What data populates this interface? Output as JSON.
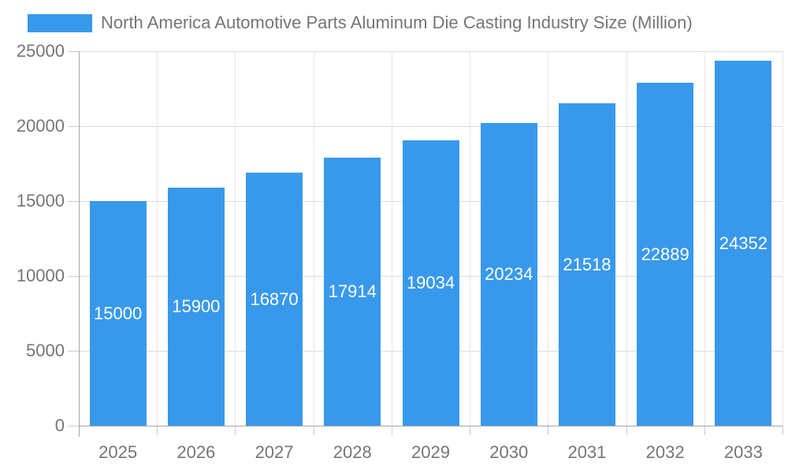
{
  "legend": {
    "label": "North America Automotive Parts Aluminum Die Casting Industry Size (Million)"
  },
  "chart_data": {
    "type": "bar",
    "title": "North America Automotive Parts Aluminum Die Casting Industry Size (Million)",
    "categories": [
      "2025",
      "2026",
      "2027",
      "2028",
      "2029",
      "2030",
      "2031",
      "2032",
      "2033"
    ],
    "values": [
      15000,
      15900,
      16870,
      17914,
      19034,
      20234,
      21518,
      22889,
      24352
    ],
    "xlabel": "",
    "ylabel": "",
    "ylim": [
      0,
      25000
    ],
    "yticks": [
      0,
      5000,
      10000,
      15000,
      20000,
      25000
    ],
    "grid": true,
    "legend_position": "top",
    "bar_color": "#3899EC",
    "bar_label_color": "#ffffff"
  },
  "colors": {
    "background": "#ffffff",
    "axis_text": "#757575",
    "axis_line": "#a6a6a6",
    "grid_horizontal": "#dcdcdc",
    "grid_vertical": "#e6e6e6",
    "tick": "#cccccc"
  }
}
